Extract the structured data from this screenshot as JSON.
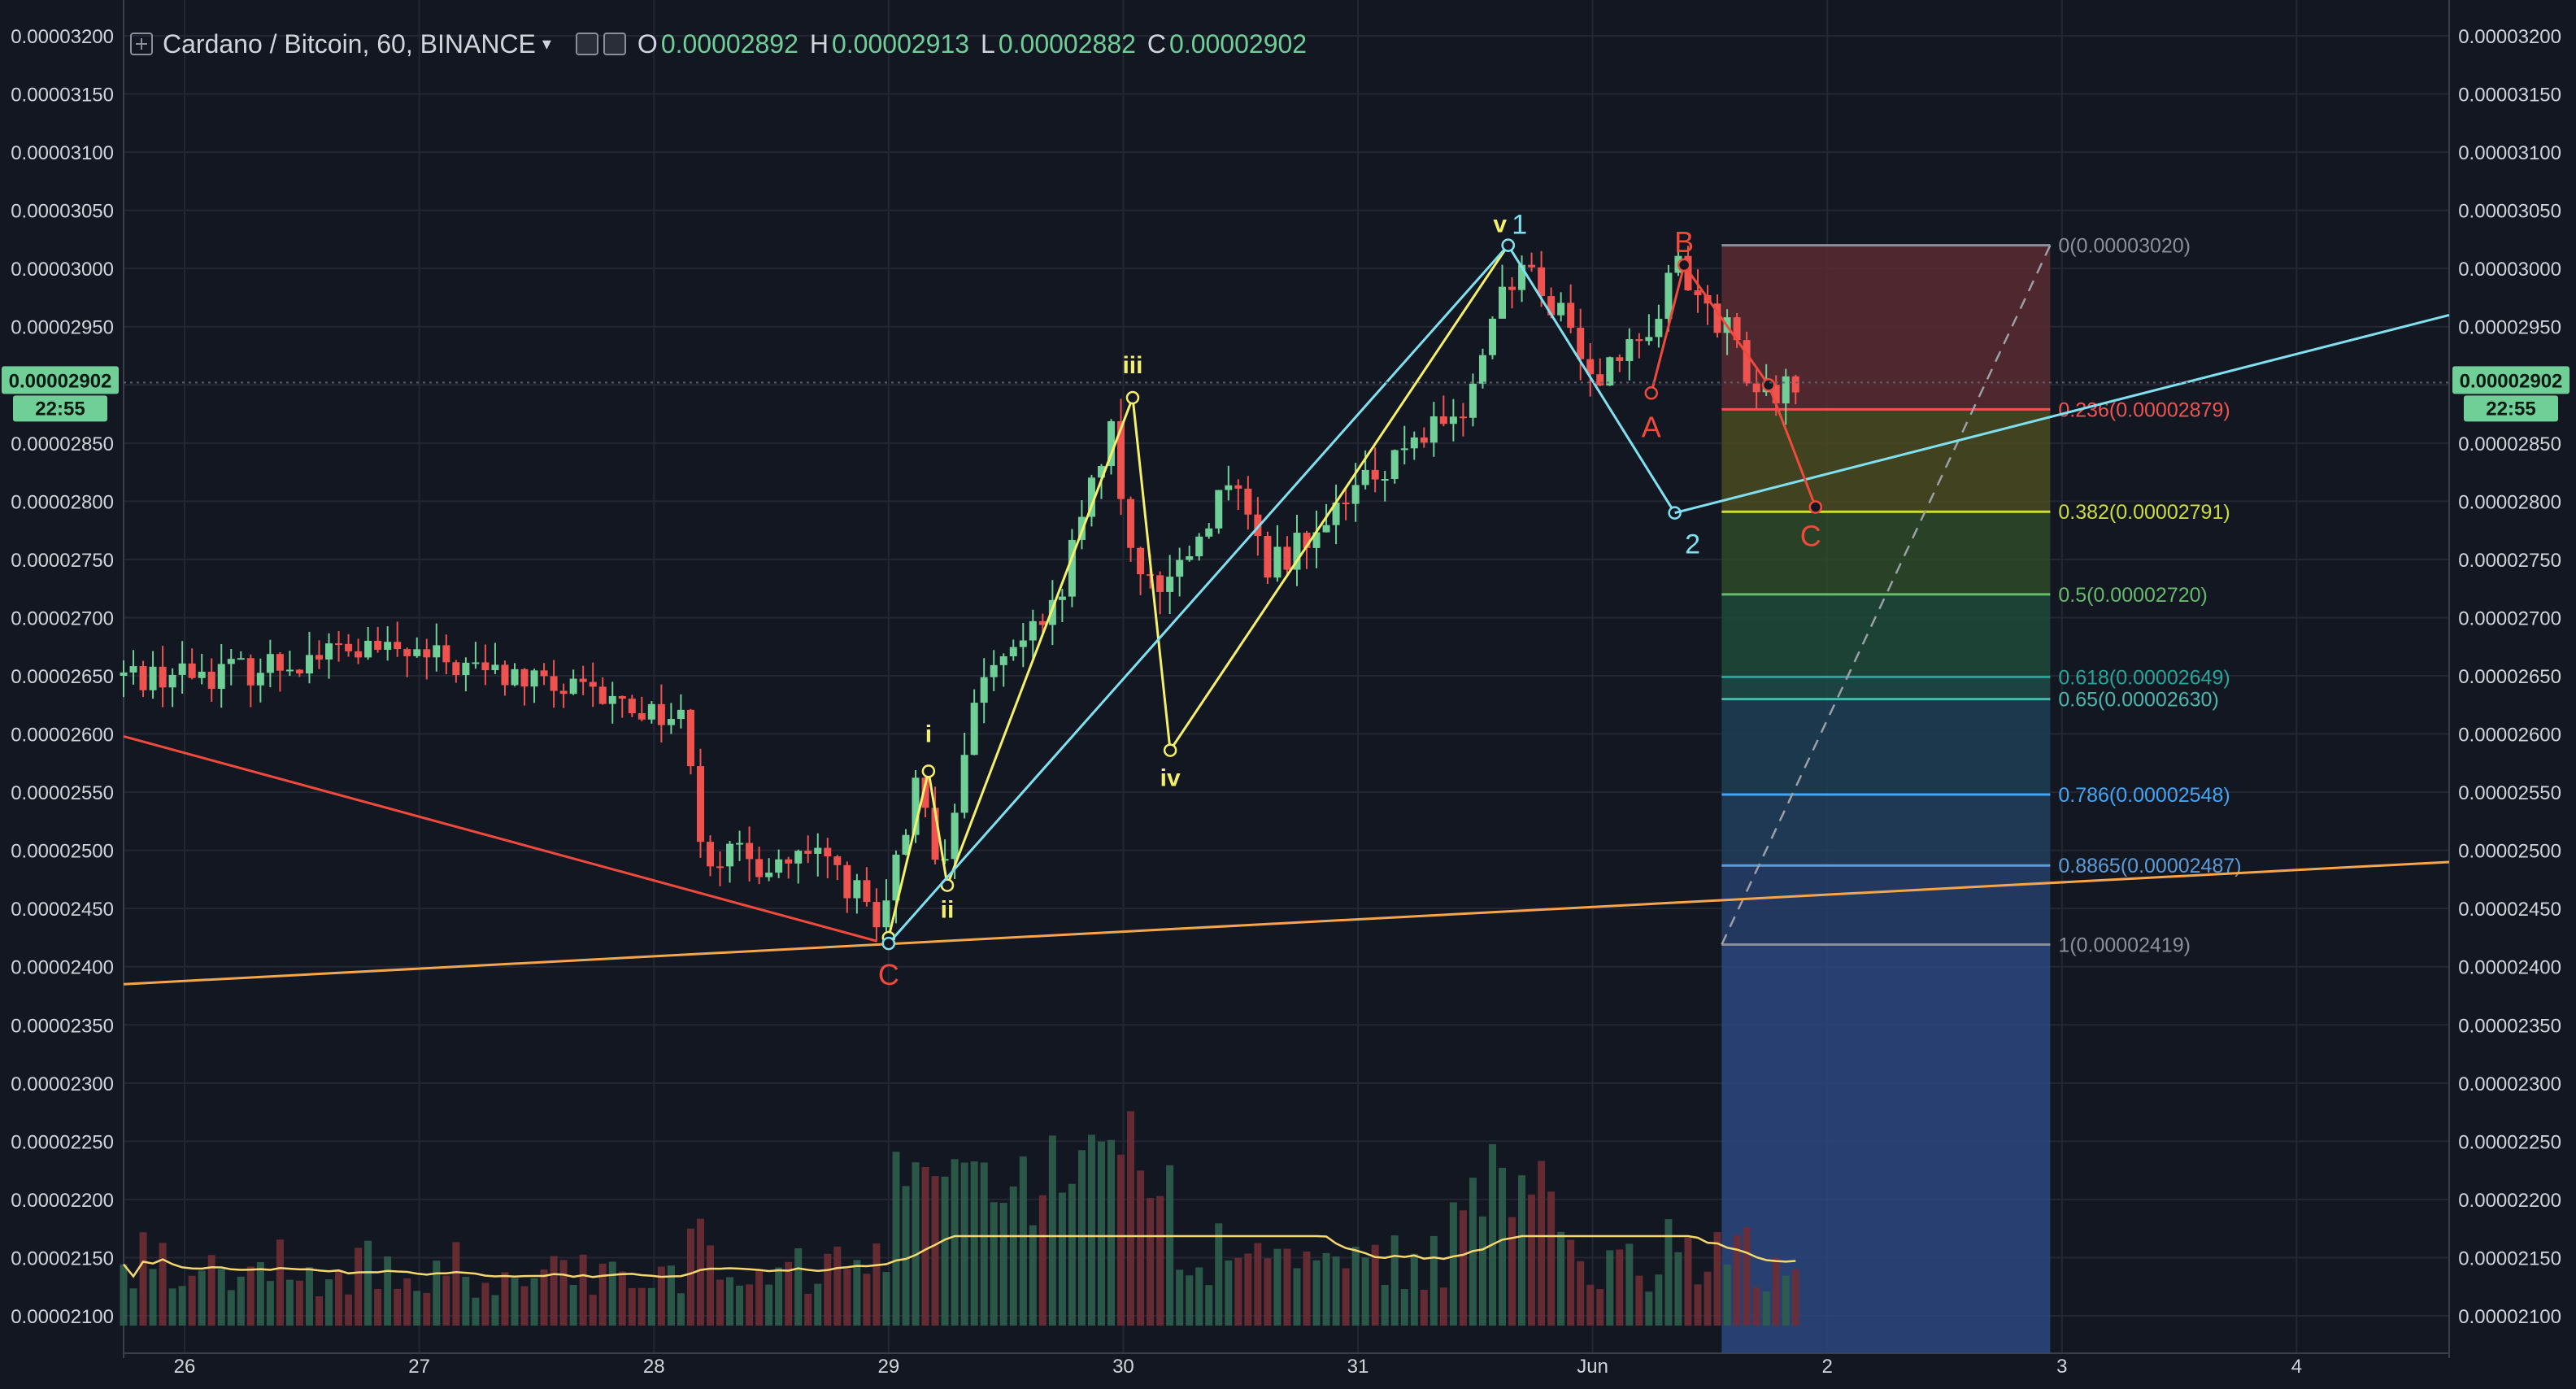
{
  "header": {
    "symbol": "Cardano / Bitcoin, 60, BINANCE",
    "open_label": "O",
    "open": "0.00002892",
    "high_label": "H",
    "high": "0.00002913",
    "low_label": "L",
    "low": "0.00002882",
    "close_label": "C",
    "close": "0.00002902",
    "icons": [
      "plus-square-icon",
      "chevron-down-icon",
      "settings-icon"
    ]
  },
  "price_tag": {
    "value": "0.00002902",
    "countdown": "22:55"
  },
  "colors": {
    "background": "#131722",
    "grid": "#242733",
    "up": "#6fcf97",
    "down": "#ef5350",
    "yellow_wave": "#f5f06a",
    "cyan_wave": "#7fe0f0",
    "red_wave": "#f04a3c",
    "trendline": "#f5a64c",
    "axis_text": "#d1d4dc",
    "price_tag": "#6fcf97"
  },
  "chart_data": {
    "type": "candlestick",
    "title": "Cardano / Bitcoin, 60, BINANCE",
    "ylim": [
      2.07e-05,
      3.22e-05
    ],
    "y_ticks": [
      "0.00003200",
      "0.00003150",
      "0.00003100",
      "0.00003050",
      "0.00003000",
      "0.00002950",
      "0.00002900",
      "0.00002850",
      "0.00002800",
      "0.00002750",
      "0.00002700",
      "0.00002650",
      "0.00002600",
      "0.00002550",
      "0.00002500",
      "0.00002450",
      "0.00002400",
      "0.00002350",
      "0.00002300",
      "0.00002250",
      "0.00002200",
      "0.00002150",
      "0.00002100"
    ],
    "x_ticks": [
      {
        "label": "26",
        "t": 26
      },
      {
        "label": "27",
        "t": 27
      },
      {
        "label": "28",
        "t": 28
      },
      {
        "label": "29",
        "t": 29
      },
      {
        "label": "30",
        "t": 30
      },
      {
        "label": "31",
        "t": 31
      },
      {
        "label": "Jun",
        "t": 32
      },
      {
        "label": "2",
        "t": 33
      },
      {
        "label": "3",
        "t": 34
      },
      {
        "label": "4",
        "t": 35
      }
    ],
    "x_range": [
      25.74,
      35.65
    ],
    "price_path": [
      [
        25.74,
        2.65e-05
      ],
      [
        26.3,
        2.655e-05
      ],
      [
        26.7,
        2.672e-05
      ],
      [
        27.0,
        2.668e-05
      ],
      [
        27.4,
        2.65e-05
      ],
      [
        27.8,
        2.63e-05
      ],
      [
        28.15,
        2.615e-05
      ],
      [
        28.2,
        2.585e-05
      ],
      [
        28.25,
        2.5e-05
      ],
      [
        28.45,
        2.49e-05
      ],
      [
        28.8,
        2.49e-05
      ],
      [
        28.95,
        2.45e-05
      ],
      [
        29.0,
        2.425e-05
      ],
      [
        29.18,
        2.568e-05
      ],
      [
        29.25,
        2.47e-05
      ],
      [
        29.45,
        2.66e-05
      ],
      [
        29.65,
        2.68e-05
      ],
      [
        29.8,
        2.74e-05
      ],
      [
        30.0,
        2.87e-05
      ],
      [
        30.03,
        2.79e-05
      ],
      [
        30.15,
        2.72e-05
      ],
      [
        30.4,
        2.78e-05
      ],
      [
        30.5,
        2.82e-05
      ],
      [
        30.65,
        2.74e-05
      ],
      [
        31.0,
        2.8e-05
      ],
      [
        31.3,
        2.86e-05
      ],
      [
        31.5,
        2.87e-05
      ],
      [
        31.65,
        2.985e-05
      ],
      [
        31.8,
        2.995e-05
      ],
      [
        32.05,
        2.91e-05
      ],
      [
        32.25,
        2.94e-05
      ],
      [
        32.4,
        3e-05
      ],
      [
        32.6,
        2.95e-05
      ],
      [
        32.75,
        2.89e-05
      ],
      [
        32.9,
        2.902e-05
      ]
    ],
    "waves": {
      "yellow": {
        "points": [
          [
            29.0,
            2.425e-05
          ],
          [
            29.17,
            2.568e-05
          ],
          [
            29.25,
            2.47e-05
          ],
          [
            30.04,
            2.889e-05
          ],
          [
            30.2,
            2.586e-05
          ],
          [
            31.64,
            3.02e-05
          ]
        ],
        "labels": [
          "i",
          "ii",
          "iii",
          "iv",
          "v"
        ]
      },
      "cyan": {
        "points": [
          [
            29.0,
            2.42e-05
          ],
          [
            31.64,
            3.02e-05
          ],
          [
            32.35,
            2.79e-05
          ],
          [
            35.65,
            2.96e-05
          ]
        ],
        "labels": [
          "1",
          "2"
        ]
      },
      "red": {
        "points": [
          [
            32.25,
            2.893e-05
          ],
          [
            32.39,
            3.003e-05
          ],
          [
            32.75,
            2.9e-05
          ],
          [
            32.95,
            2.795e-05
          ]
        ],
        "labels": [
          "C",
          "A",
          "B",
          "C"
        ]
      }
    },
    "trendlines": [
      {
        "name": "orange",
        "from": [
          25.74,
          2.385e-05
        ],
        "to": [
          35.65,
          2.49e-05
        ]
      },
      {
        "name": "red",
        "from": [
          25.74,
          2.598e-05
        ],
        "to": [
          28.95,
          2.422e-05
        ]
      }
    ],
    "fibonacci": {
      "from": [
        32.55,
        2.419e-05
      ],
      "to": [
        33.95,
        3.02e-05
      ],
      "levels": [
        {
          "ratio": "0",
          "price": "0.00003020",
          "color": "#8a8f9c",
          "value": 3.02e-05
        },
        {
          "ratio": "0.236",
          "price": "0.00002879",
          "color": "#ef5350",
          "value": 2.879e-05
        },
        {
          "ratio": "0.382",
          "price": "0.00002791",
          "color": "#cddc39",
          "value": 2.791e-05
        },
        {
          "ratio": "0.5",
          "price": "0.00002720",
          "color": "#66bb6a",
          "value": 2.72e-05
        },
        {
          "ratio": "0.618",
          "price": "0.00002649",
          "color": "#26a69a",
          "value": 2.649e-05
        },
        {
          "ratio": "0.65",
          "price": "0.00002630",
          "color": "#4db6ac",
          "value": 2.63e-05
        },
        {
          "ratio": "0.786",
          "price": "0.00002548",
          "color": "#42a5f5",
          "value": 2.548e-05
        },
        {
          "ratio": "0.8865",
          "price": "0.00002487",
          "color": "#5c9bd6",
          "value": 2.487e-05
        },
        {
          "ratio": "1",
          "price": "0.00002419",
          "color": "#8a8f9c",
          "value": 2.419e-05
        }
      ],
      "text": [
        "0(0.00003020)",
        "0.236(0.00002879)",
        "0.382(0.00002791)",
        "0.5(0.00002720)",
        "0.618(0.00002649)",
        "0.65(0.00002630)",
        "0.786(0.00002548)",
        "0.8865(0.00002487)",
        "1(0.00002419)"
      ]
    },
    "volume": {
      "ma_color": "#f5d76e",
      "max_label_value": 2.2e-05
    }
  }
}
